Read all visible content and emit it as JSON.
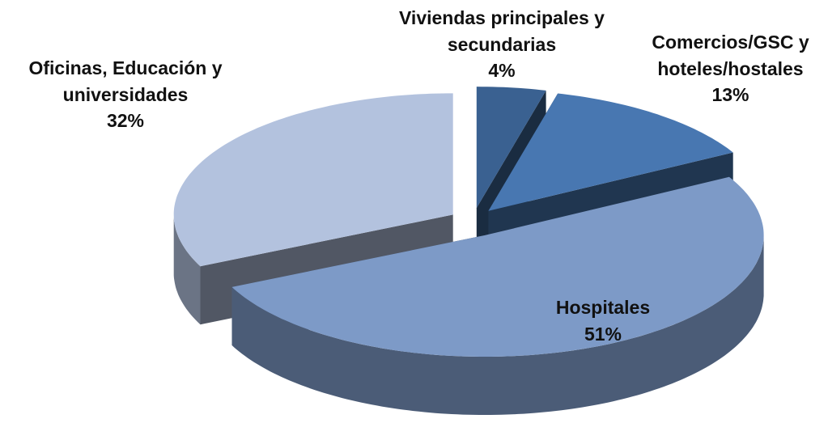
{
  "chart_data": {
    "type": "pie",
    "categories": [
      "Viviendas principales y secundarias",
      "Comercios/GSC y hoteles/hostales",
      "Hospitales",
      "Oficinas, Educación y universidades"
    ],
    "values": [
      4,
      13,
      51,
      32
    ],
    "value_labels": [
      "4%",
      "13%",
      "51%",
      "32%"
    ],
    "colors": [
      "#3a6191",
      "#4877b1",
      "#7d9ac7",
      "#b3c2de"
    ]
  }
}
